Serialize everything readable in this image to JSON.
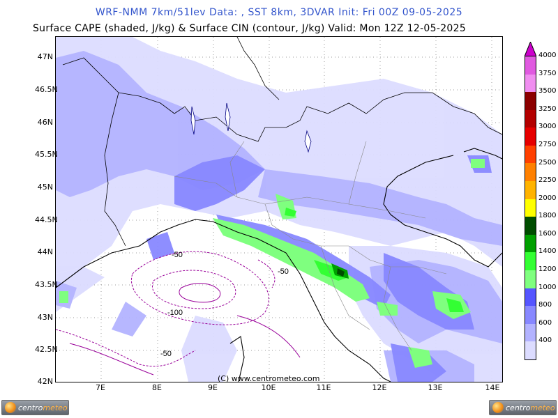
{
  "title": {
    "line1": "WRF-NMM 7km/51lev  Data: , SST 8km, 3DVAR  Init: Fri 00Z 09-05-2025",
    "line2": "Surface CAPE (shaded, J/kg) & Surface CIN (contour, J/kg)  Valid: Mon 12Z 12-05-2025",
    "line1_color": "#3355cc"
  },
  "copyright": "(C)  www.centrometeo.com",
  "lat_labels": [
    "47N",
    "46.5N",
    "46N",
    "45.5N",
    "45N",
    "44.5N",
    "44N",
    "43.5N",
    "43N",
    "42.5N",
    "42N"
  ],
  "lon_labels": [
    "7E",
    "8E",
    "9E",
    "10E",
    "11E",
    "12E",
    "13E",
    "14E"
  ],
  "colorbar": {
    "labels": [
      "4000",
      "3750",
      "3500",
      "3250",
      "3000",
      "2750",
      "2500",
      "2250",
      "2000",
      "1800",
      "1600",
      "1400",
      "1200",
      "1000",
      "800",
      "600",
      "400"
    ],
    "colors": [
      "#cc00cc",
      "#e05ae0",
      "#f08ef0",
      "#8b0000",
      "#b30000",
      "#e60000",
      "#ff4000",
      "#ff8000",
      "#ffb300",
      "#ffff00",
      "#004d00",
      "#00a000",
      "#33ff33",
      "#7fff7f",
      "#5555ff",
      "#8888ff",
      "#b3b3ff",
      "#dcdcff"
    ]
  },
  "cin_contours": [
    {
      "label": "-50"
    },
    {
      "label": "-50"
    },
    {
      "label": "-100"
    },
    {
      "label": "-50"
    }
  ],
  "logos": {
    "left_text_a": "centro",
    "left_text_b": "meteo",
    "right_text_a": "centro",
    "right_text_b": "meteo"
  }
}
